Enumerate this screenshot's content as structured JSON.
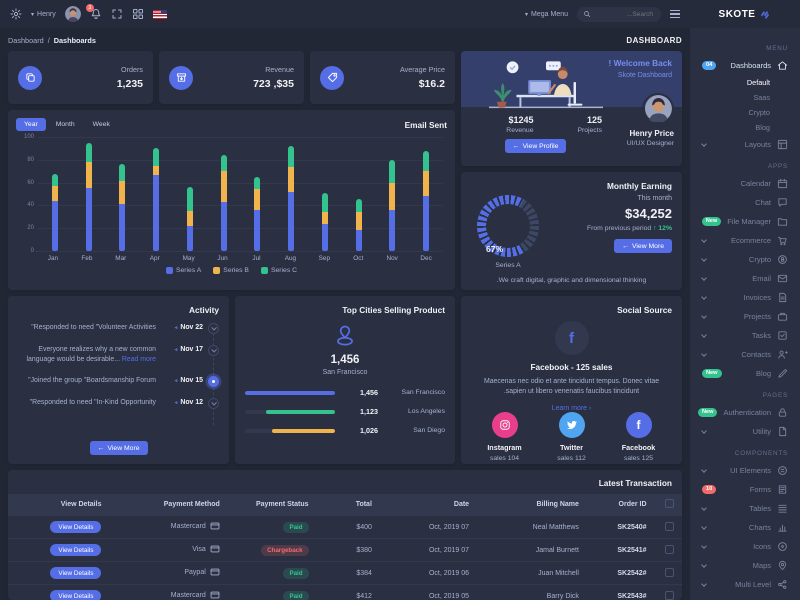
{
  "colors": {
    "primary": "#556ee6",
    "success": "#34c38f",
    "warning": "#f1b44c",
    "danger": "#f46a6a",
    "info": "#50a5f1",
    "pink": "#e83e8c",
    "bg": "#222736",
    "card": "#2a3042",
    "topbar": "#262b3c"
  },
  "topbar": {
    "user_name": "Henry",
    "notification_count": "3",
    "mega_menu_label": "Mega Menu",
    "search_placeholder": "Search..."
  },
  "page_title": "DASHBOARD",
  "breadcrumb": {
    "items": [
      "Dashboard",
      "Dashboards"
    ],
    "separator": "/"
  },
  "stats": [
    {
      "label": "Average Price",
      "value": "$16.2",
      "icon": "tag-icon"
    },
    {
      "label": "Revenue",
      "value": "$35, 723",
      "icon": "archive-icon"
    },
    {
      "label": "Orders",
      "value": "1,235",
      "icon": "copy-icon"
    }
  ],
  "welcome": {
    "title": "Welcome Back !",
    "subtitle": "Skote Dashboard",
    "revenue_value": "$1245",
    "revenue_label": "Revenue",
    "projects_value": "125",
    "projects_label": "Projects",
    "button": "View Profile",
    "name": "Henry Price",
    "role": "UI/UX Designer"
  },
  "email_sent": {
    "title": "Email Sent",
    "tabs": [
      "Year",
      "Month",
      "Week"
    ],
    "active_tab": "Year"
  },
  "chart_data": [
    {
      "type": "bar",
      "stacked": true,
      "title": "Email Sent",
      "categories": [
        "Jan",
        "Feb",
        "Mar",
        "Apr",
        "May",
        "Jun",
        "Jul",
        "Aug",
        "Sep",
        "Oct",
        "Nov",
        "Dec"
      ],
      "series": [
        {
          "name": "Series A",
          "color": "#556ee6",
          "values": [
            44,
            55,
            41,
            67,
            22,
            43,
            36,
            52,
            24,
            18,
            36,
            48
          ]
        },
        {
          "name": "Series B",
          "color": "#f1b44c",
          "values": [
            13,
            23,
            20,
            8,
            13,
            27,
            18,
            22,
            10,
            16,
            24,
            22
          ]
        },
        {
          "name": "Series C",
          "color": "#34c38f",
          "values": [
            11,
            17,
            15,
            15,
            21,
            14,
            11,
            18,
            17,
            12,
            20,
            18
          ]
        }
      ],
      "ylim": [
        0,
        100
      ],
      "yticks": [
        0,
        20,
        40,
        60,
        80,
        100
      ],
      "grid": true,
      "legend_position": "bottom"
    },
    {
      "type": "radialBar",
      "title": "Monthly Earning",
      "value": 67,
      "label": "Series A",
      "color": "#556ee6"
    },
    {
      "type": "progress",
      "title": "Top Cities Selling Product",
      "categories": [
        "San Francisco",
        "Los Angeles",
        "San Diego"
      ],
      "values": [
        1456,
        1123,
        1026
      ],
      "colors": [
        "#556ee6",
        "#34c38f",
        "#f1b44c"
      ]
    }
  ],
  "monthly_earning": {
    "title": "Monthly Earning",
    "period_label": "This month",
    "amount": "$34,252",
    "comparison_text": "From previous period",
    "delta": "12%",
    "delta_arrow": "↑",
    "gauge_value": "67%",
    "gauge_label": "Series A",
    "gauge_pct": 67,
    "button": "View More",
    "footnote": "We craft digital, graphic and dimensional thinking."
  },
  "top_cities": {
    "title": "Top Cities Selling Product",
    "highlight_value": "1,456",
    "highlight_city": "San Francisco",
    "rows": [
      {
        "city": "San Francisco",
        "value": "1,456",
        "pct": 100,
        "color": "#556ee6"
      },
      {
        "city": "Los Angeles",
        "value": "1,123",
        "pct": 77,
        "color": "#34c38f"
      },
      {
        "city": "San Diego",
        "value": "1,026",
        "pct": 70,
        "color": "#f1b44c"
      }
    ]
  },
  "activity": {
    "title": "Activity",
    "button": "View More",
    "items": [
      {
        "date": "22 Nov",
        "text": "Responded to need \"Volunteer Activities\"",
        "active": false
      },
      {
        "date": "17 Nov",
        "text": "Everyone realizes why a new common language would be desirable...",
        "link": "Read more",
        "active": false
      },
      {
        "date": "15 Nov",
        "text": "Joined the group \"Boardsmanship Forum\"",
        "active": true
      },
      {
        "date": "12 Nov",
        "text": "Responded to need \"In-Kind Opportunity\"",
        "active": false
      }
    ]
  },
  "social": {
    "title": "Social Source",
    "headline": "Facebook - 125 sales",
    "desc": "Maecenas nec odio et ante tincidunt tempus. Donec vitae sapien ut libero venenatis faucibus tincidunt.",
    "link": "Learn more",
    "accounts": [
      {
        "name": "Facebook",
        "sales": "125 sales",
        "color": "#556ee6",
        "icon": "facebook-icon"
      },
      {
        "name": "Twitter",
        "sales": "112 sales",
        "color": "#50a5f1",
        "icon": "twitter-icon"
      },
      {
        "name": "Instagram",
        "sales": "104 sales",
        "color": "#e83e8c",
        "icon": "instagram-icon"
      }
    ]
  },
  "transactions": {
    "title": "Latest Transaction",
    "button": "View Details",
    "columns": [
      "Order ID",
      "Billing Name",
      "Date",
      "Total",
      "Payment Status",
      "Payment Method",
      "View Details"
    ],
    "rows": [
      {
        "order_id": "#SK2540",
        "billing_name": "Neal Matthews",
        "date": "07 Oct, 2019",
        "total": "$400",
        "status": "Paid",
        "method": "Mastercard"
      },
      {
        "order_id": "#SK2541",
        "billing_name": "Jamal Burnett",
        "date": "07 Oct, 2019",
        "total": "$380",
        "status": "Chargeback",
        "method": "Visa"
      },
      {
        "order_id": "#SK2542",
        "billing_name": "Juan Mitchell",
        "date": "06 Oct, 2019",
        "total": "$384",
        "status": "Paid",
        "method": "Paypal"
      },
      {
        "order_id": "#SK2543",
        "billing_name": "Barry Dick",
        "date": "05 Oct, 2019",
        "total": "$412",
        "status": "Paid",
        "method": "Mastercard"
      }
    ]
  },
  "sidebar": {
    "brand": "SKOTE",
    "items": [
      {
        "type": "section",
        "label": "MENU"
      },
      {
        "type": "item",
        "label": "Dashboards",
        "icon": "home-icon",
        "badge": "04",
        "badge_color": "#50a5f1",
        "active": true
      },
      {
        "type": "subitem",
        "label": "Default",
        "active": true
      },
      {
        "type": "subitem",
        "label": "Saas"
      },
      {
        "type": "subitem",
        "label": "Crypto"
      },
      {
        "type": "subitem",
        "label": "Blog"
      },
      {
        "type": "item",
        "label": "Layouts",
        "icon": "layout-icon",
        "chevron": true
      },
      {
        "type": "section",
        "label": "APPS"
      },
      {
        "type": "item",
        "label": "Calendar",
        "icon": "calendar-icon"
      },
      {
        "type": "item",
        "label": "Chat",
        "icon": "chat-icon"
      },
      {
        "type": "item",
        "label": "File Manager",
        "icon": "folder-icon",
        "badge": "New",
        "badge_color": "#34c38f"
      },
      {
        "type": "item",
        "label": "Ecommerce",
        "icon": "cart-icon",
        "chevron": true
      },
      {
        "type": "item",
        "label": "Crypto",
        "icon": "coin-icon",
        "chevron": true
      },
      {
        "type": "item",
        "label": "Email",
        "icon": "mail-icon",
        "chevron": true
      },
      {
        "type": "item",
        "label": "Invoices",
        "icon": "invoice-icon",
        "chevron": true
      },
      {
        "type": "item",
        "label": "Projects",
        "icon": "briefcase-icon",
        "chevron": true
      },
      {
        "type": "item",
        "label": "Tasks",
        "icon": "task-icon",
        "chevron": true
      },
      {
        "type": "item",
        "label": "Contacts",
        "icon": "contacts-icon",
        "chevron": true
      },
      {
        "type": "item",
        "label": "Blog",
        "icon": "blog-icon",
        "badge": "New",
        "badge_color": "#34c38f"
      },
      {
        "type": "section",
        "label": "PAGES"
      },
      {
        "type": "item",
        "label": "Authentication",
        "icon": "lock-icon",
        "badge": "New",
        "badge_color": "#34c38f"
      },
      {
        "type": "item",
        "label": "Utility",
        "icon": "file-icon",
        "chevron": true
      },
      {
        "type": "section",
        "label": "COMPONENTS"
      },
      {
        "type": "item",
        "label": "UI Elements",
        "icon": "ui-icon",
        "chevron": true
      },
      {
        "type": "item",
        "label": "Forms",
        "icon": "form-icon",
        "badge": "10",
        "badge_color": "#f46a6a"
      },
      {
        "type": "item",
        "label": "Tables",
        "icon": "table-icon",
        "chevron": true
      },
      {
        "type": "item",
        "label": "Charts",
        "icon": "chart-icon",
        "chevron": true
      },
      {
        "type": "item",
        "label": "Icons",
        "icon": "icons-icon",
        "chevron": true
      },
      {
        "type": "item",
        "label": "Maps",
        "icon": "map-icon",
        "chevron": true
      },
      {
        "type": "item",
        "label": "Multi Level",
        "icon": "share-icon",
        "chevron": true
      }
    ]
  }
}
